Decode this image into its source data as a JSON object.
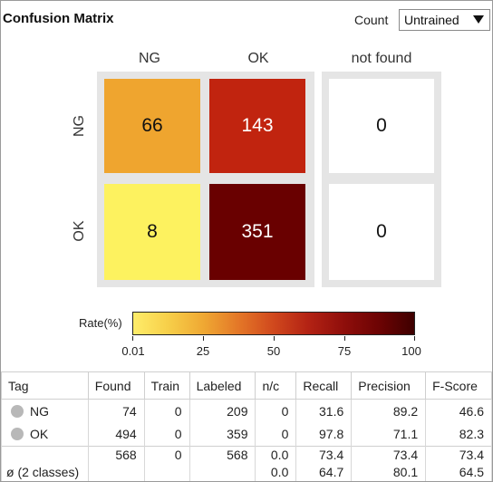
{
  "title": "Confusion Matrix",
  "count_label": "Count",
  "selector": {
    "value": "Untrained"
  },
  "matrix": {
    "columns": [
      "NG",
      "OK",
      "not found"
    ],
    "rows": [
      "NG",
      "OK"
    ],
    "cells": [
      {
        "value": "66",
        "color": "#efa52f"
      },
      {
        "value": "143",
        "color": "#c1240f"
      },
      {
        "value": "0",
        "color": "#ffffff"
      },
      {
        "value": "8",
        "color": "#fdf25f"
      },
      {
        "value": "351",
        "color": "#690000"
      },
      {
        "value": "0",
        "color": "#ffffff"
      }
    ]
  },
  "colorbar": {
    "label": "Rate(%)",
    "ticks": [
      "0.01",
      "25",
      "50",
      "75",
      "100"
    ]
  },
  "table": {
    "headers": [
      "Tag",
      "Found",
      "Train",
      "Labeled",
      "n/c",
      "Recall",
      "Precision",
      "F-Score"
    ],
    "rows": [
      {
        "tag": "NG",
        "found": "74",
        "train": "0",
        "labeled": "209",
        "nc": "0",
        "recall": "31.6",
        "precision": "89.2",
        "fscore": "46.6"
      },
      {
        "tag": "OK",
        "found": "494",
        "train": "0",
        "labeled": "359",
        "nc": "0",
        "recall": "97.8",
        "precision": "71.1",
        "fscore": "82.3"
      }
    ],
    "summary": {
      "line1": {
        "tag": "",
        "found": "568",
        "train": "0",
        "labeled": "568",
        "nc": "0.0",
        "recall": "73.4",
        "precision": "73.4",
        "fscore": "73.4"
      },
      "line2": {
        "tag": "ø (2 classes)",
        "found": "",
        "train": "",
        "labeled": "",
        "nc": "0.0",
        "recall": "64.7",
        "precision": "80.1",
        "fscore": "64.5"
      }
    }
  }
}
